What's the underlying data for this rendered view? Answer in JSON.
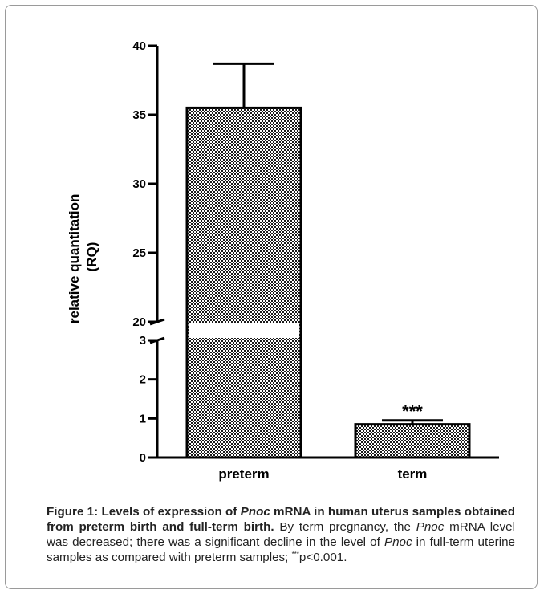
{
  "chart_data": {
    "type": "bar",
    "ylabel_line1": "relative quantitation",
    "ylabel_line2": "(RQ)",
    "categories": [
      "preterm",
      "term"
    ],
    "values": [
      35.5,
      0.85
    ],
    "error_upper": [
      38.7,
      0.95
    ],
    "annotations": [
      "",
      "***"
    ],
    "y_axis_break": {
      "lower_range": [
        0,
        3
      ],
      "upper_range": [
        20,
        40
      ]
    },
    "yticks_lower": [
      0,
      1,
      2,
      3
    ],
    "yticks_upper": [
      20,
      25,
      30,
      35,
      40
    ],
    "bar_pattern": "crosshatch-checkered",
    "grid": false
  },
  "caption": {
    "figure_label": "Figure 1: Levels of expression of ",
    "gene_1": "Pnoc",
    "title_rest": " mRNA in human uterus samples obtained from preterm birth and full-term birth.",
    "text_1": " By term pregnancy, the ",
    "gene_2": "Pnoc",
    "text_2": " mRNA level was decreased; there was a significant decline in the level of ",
    "gene_3": "Pnoc",
    "text_3": " in full-term uterine samples as compared with preterm samples; ",
    "sig_mark": "***",
    "pvalue": "p<0.001."
  }
}
